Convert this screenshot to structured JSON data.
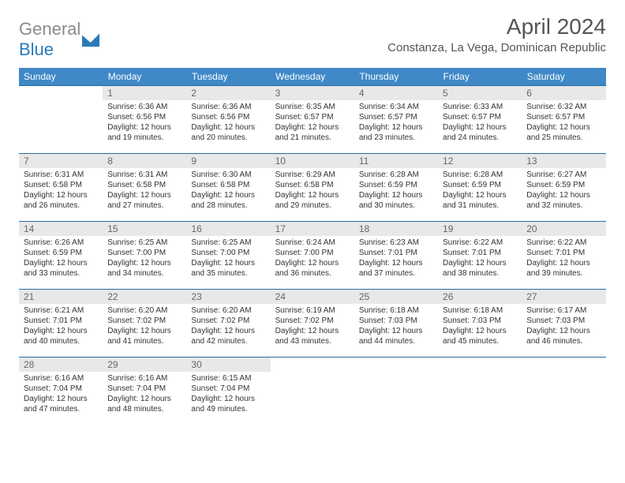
{
  "logo": {
    "word1": "General",
    "word2": "Blue",
    "shape_fill": "#2a7ab9"
  },
  "colors": {
    "header_bg": "#3e89c6",
    "header_text": "#ffffff",
    "daynum_bg": "#e8e8e8",
    "daynum_text": "#666666",
    "row_divider": "#2a6aa0",
    "body_text": "#333333",
    "title_text": "#555555",
    "background": "#ffffff"
  },
  "title": "April 2024",
  "subtitle": "Constanza, La Vega, Dominican Republic",
  "day_headers": [
    "Sunday",
    "Monday",
    "Tuesday",
    "Wednesday",
    "Thursday",
    "Friday",
    "Saturday"
  ],
  "first_weekday_index": 1,
  "days": [
    {
      "n": "1",
      "sunrise": "Sunrise: 6:36 AM",
      "sunset": "Sunset: 6:56 PM",
      "daylight": "Daylight: 12 hours and 19 minutes."
    },
    {
      "n": "2",
      "sunrise": "Sunrise: 6:36 AM",
      "sunset": "Sunset: 6:56 PM",
      "daylight": "Daylight: 12 hours and 20 minutes."
    },
    {
      "n": "3",
      "sunrise": "Sunrise: 6:35 AM",
      "sunset": "Sunset: 6:57 PM",
      "daylight": "Daylight: 12 hours and 21 minutes."
    },
    {
      "n": "4",
      "sunrise": "Sunrise: 6:34 AM",
      "sunset": "Sunset: 6:57 PM",
      "daylight": "Daylight: 12 hours and 23 minutes."
    },
    {
      "n": "5",
      "sunrise": "Sunrise: 6:33 AM",
      "sunset": "Sunset: 6:57 PM",
      "daylight": "Daylight: 12 hours and 24 minutes."
    },
    {
      "n": "6",
      "sunrise": "Sunrise: 6:32 AM",
      "sunset": "Sunset: 6:57 PM",
      "daylight": "Daylight: 12 hours and 25 minutes."
    },
    {
      "n": "7",
      "sunrise": "Sunrise: 6:31 AM",
      "sunset": "Sunset: 6:58 PM",
      "daylight": "Daylight: 12 hours and 26 minutes."
    },
    {
      "n": "8",
      "sunrise": "Sunrise: 6:31 AM",
      "sunset": "Sunset: 6:58 PM",
      "daylight": "Daylight: 12 hours and 27 minutes."
    },
    {
      "n": "9",
      "sunrise": "Sunrise: 6:30 AM",
      "sunset": "Sunset: 6:58 PM",
      "daylight": "Daylight: 12 hours and 28 minutes."
    },
    {
      "n": "10",
      "sunrise": "Sunrise: 6:29 AM",
      "sunset": "Sunset: 6:58 PM",
      "daylight": "Daylight: 12 hours and 29 minutes."
    },
    {
      "n": "11",
      "sunrise": "Sunrise: 6:28 AM",
      "sunset": "Sunset: 6:59 PM",
      "daylight": "Daylight: 12 hours and 30 minutes."
    },
    {
      "n": "12",
      "sunrise": "Sunrise: 6:28 AM",
      "sunset": "Sunset: 6:59 PM",
      "daylight": "Daylight: 12 hours and 31 minutes."
    },
    {
      "n": "13",
      "sunrise": "Sunrise: 6:27 AM",
      "sunset": "Sunset: 6:59 PM",
      "daylight": "Daylight: 12 hours and 32 minutes."
    },
    {
      "n": "14",
      "sunrise": "Sunrise: 6:26 AM",
      "sunset": "Sunset: 6:59 PM",
      "daylight": "Daylight: 12 hours and 33 minutes."
    },
    {
      "n": "15",
      "sunrise": "Sunrise: 6:25 AM",
      "sunset": "Sunset: 7:00 PM",
      "daylight": "Daylight: 12 hours and 34 minutes."
    },
    {
      "n": "16",
      "sunrise": "Sunrise: 6:25 AM",
      "sunset": "Sunset: 7:00 PM",
      "daylight": "Daylight: 12 hours and 35 minutes."
    },
    {
      "n": "17",
      "sunrise": "Sunrise: 6:24 AM",
      "sunset": "Sunset: 7:00 PM",
      "daylight": "Daylight: 12 hours and 36 minutes."
    },
    {
      "n": "18",
      "sunrise": "Sunrise: 6:23 AM",
      "sunset": "Sunset: 7:01 PM",
      "daylight": "Daylight: 12 hours and 37 minutes."
    },
    {
      "n": "19",
      "sunrise": "Sunrise: 6:22 AM",
      "sunset": "Sunset: 7:01 PM",
      "daylight": "Daylight: 12 hours and 38 minutes."
    },
    {
      "n": "20",
      "sunrise": "Sunrise: 6:22 AM",
      "sunset": "Sunset: 7:01 PM",
      "daylight": "Daylight: 12 hours and 39 minutes."
    },
    {
      "n": "21",
      "sunrise": "Sunrise: 6:21 AM",
      "sunset": "Sunset: 7:01 PM",
      "daylight": "Daylight: 12 hours and 40 minutes."
    },
    {
      "n": "22",
      "sunrise": "Sunrise: 6:20 AM",
      "sunset": "Sunset: 7:02 PM",
      "daylight": "Daylight: 12 hours and 41 minutes."
    },
    {
      "n": "23",
      "sunrise": "Sunrise: 6:20 AM",
      "sunset": "Sunset: 7:02 PM",
      "daylight": "Daylight: 12 hours and 42 minutes."
    },
    {
      "n": "24",
      "sunrise": "Sunrise: 6:19 AM",
      "sunset": "Sunset: 7:02 PM",
      "daylight": "Daylight: 12 hours and 43 minutes."
    },
    {
      "n": "25",
      "sunrise": "Sunrise: 6:18 AM",
      "sunset": "Sunset: 7:03 PM",
      "daylight": "Daylight: 12 hours and 44 minutes."
    },
    {
      "n": "26",
      "sunrise": "Sunrise: 6:18 AM",
      "sunset": "Sunset: 7:03 PM",
      "daylight": "Daylight: 12 hours and 45 minutes."
    },
    {
      "n": "27",
      "sunrise": "Sunrise: 6:17 AM",
      "sunset": "Sunset: 7:03 PM",
      "daylight": "Daylight: 12 hours and 46 minutes."
    },
    {
      "n": "28",
      "sunrise": "Sunrise: 6:16 AM",
      "sunset": "Sunset: 7:04 PM",
      "daylight": "Daylight: 12 hours and 47 minutes."
    },
    {
      "n": "29",
      "sunrise": "Sunrise: 6:16 AM",
      "sunset": "Sunset: 7:04 PM",
      "daylight": "Daylight: 12 hours and 48 minutes."
    },
    {
      "n": "30",
      "sunrise": "Sunrise: 6:15 AM",
      "sunset": "Sunset: 7:04 PM",
      "daylight": "Daylight: 12 hours and 49 minutes."
    }
  ]
}
